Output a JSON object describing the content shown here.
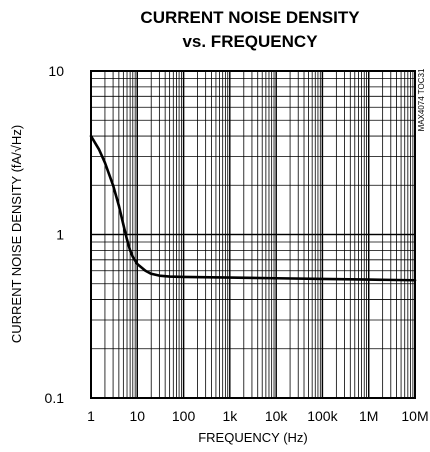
{
  "chart_data": {
    "type": "line",
    "title": "CURRENT NOISE DENSITY",
    "subtitle": "vs. FREQUENCY",
    "xlabel": "FREQUENCY (Hz)",
    "ylabel": "CURRENT NOISE DENSITY (fA/√Hz)",
    "figure_code": "MAX4074 TOC31",
    "x_scale": "log",
    "y_scale": "log",
    "xlim": [
      1,
      10000000
    ],
    "ylim": [
      0.1,
      10
    ],
    "x_ticks": [
      "1",
      "10",
      "100",
      "1k",
      "10k",
      "100k",
      "1M",
      "10M"
    ],
    "y_ticks": [
      "0.1",
      "1",
      "10"
    ],
    "grid": true,
    "series": [
      {
        "x": [
          1,
          1.5,
          2,
          3,
          4,
          5,
          6,
          7,
          8,
          10,
          15,
          20,
          30,
          50,
          100,
          1000,
          10000,
          100000,
          1000000,
          10000000
        ],
        "y": [
          4.0,
          3.3,
          2.75,
          2.0,
          1.5,
          1.15,
          0.93,
          0.8,
          0.73,
          0.66,
          0.6,
          0.575,
          0.56,
          0.553,
          0.55,
          0.545,
          0.54,
          0.535,
          0.53,
          0.525
        ]
      }
    ]
  }
}
